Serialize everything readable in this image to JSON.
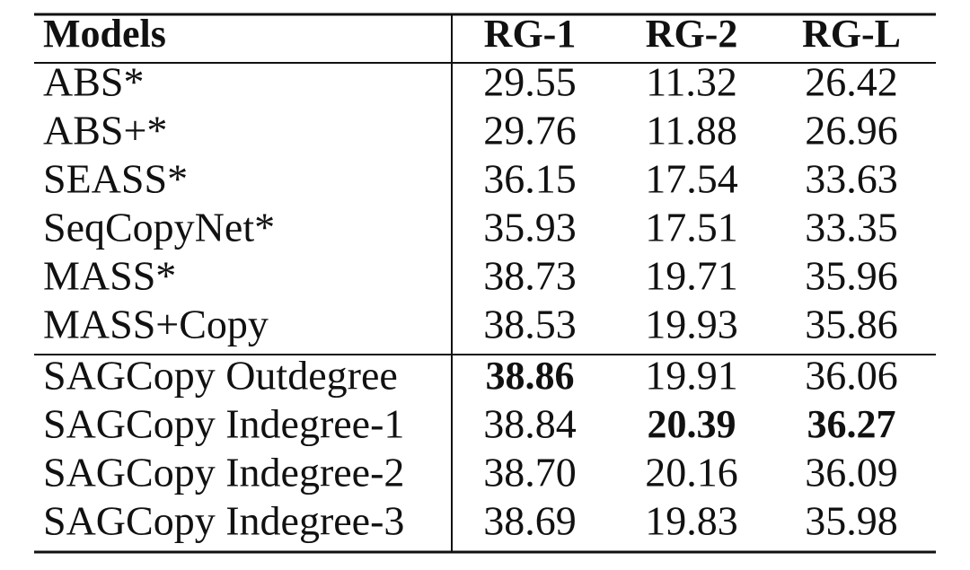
{
  "table": {
    "header": [
      "Models",
      "RG-1",
      "RG-2",
      "RG-L"
    ],
    "groups": [
      [
        [
          "ABS*",
          "29.55",
          "11.32",
          "26.42"
        ],
        [
          "ABS+*",
          "29.76",
          "11.88",
          "26.96"
        ],
        [
          "SEASS*",
          "36.15",
          "17.54",
          "33.63"
        ],
        [
          "SeqCopyNet*",
          "35.93",
          "17.51",
          "33.35"
        ],
        [
          "MASS*",
          "38.73",
          "19.71",
          "35.96"
        ],
        [
          "MASS+Copy",
          "38.53",
          "19.93",
          "35.86"
        ]
      ],
      [
        [
          "SAGCopy Outdegree",
          {
            "text": "38.86",
            "bold": true
          },
          "19.91",
          "36.06"
        ],
        [
          "SAGCopy Indegree-1",
          "38.84",
          {
            "text": "20.39",
            "bold": true
          },
          {
            "text": "36.27",
            "bold": true
          }
        ],
        [
          "SAGCopy Indegree-2",
          "38.70",
          "20.16",
          "36.09"
        ],
        [
          "SAGCopy Indegree-3",
          "38.69",
          "19.83",
          "35.98"
        ]
      ]
    ]
  }
}
